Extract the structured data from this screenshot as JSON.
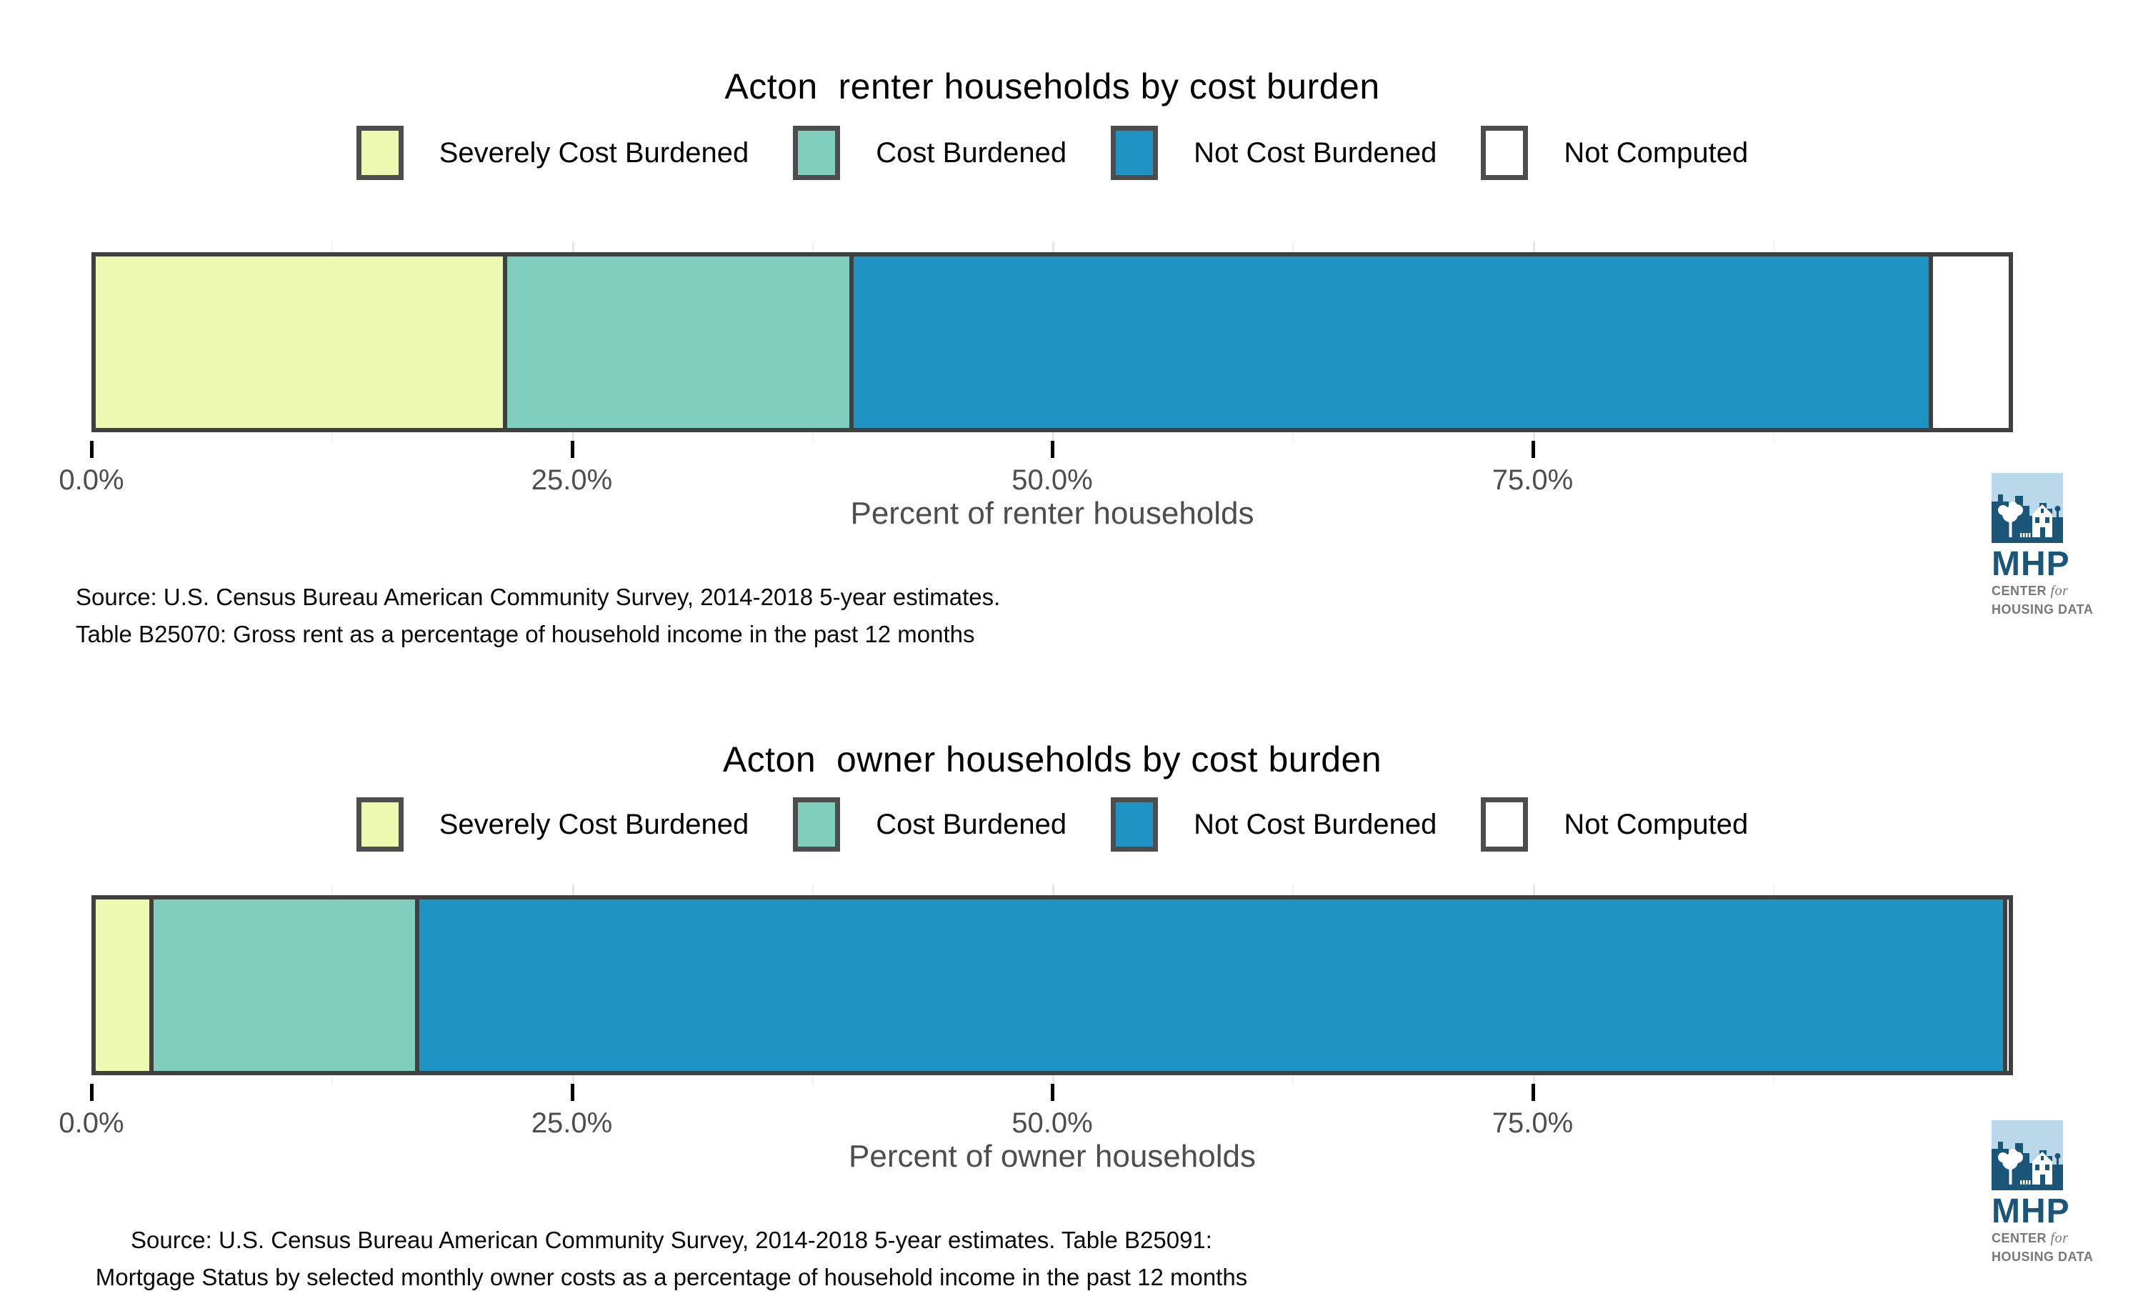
{
  "colors": {
    "severely_cost_burdened": "#edf8b1",
    "cost_burdened": "#7fcdbb",
    "not_cost_burdened": "#1e93c4",
    "not_computed": "#ffffff",
    "segment_border": "#404040",
    "axis_text": "#4d4d4d",
    "grid_major": "#e7e7e7",
    "grid_minor": "#f3f3f3",
    "logo_dark_blue": "#1b5578",
    "logo_light_blue": "#b9d8ea",
    "logo_gray": "#77787b"
  },
  "logo": {
    "acronym": "MHP",
    "center_label": "CENTER",
    "for_label": "for",
    "housing_label": "HOUSING DATA"
  },
  "chart_data": [
    {
      "type": "bar",
      "stacked": true,
      "orientation": "horizontal",
      "title": "Acton  renter households by cost burden",
      "xlabel": "Percent of renter households",
      "xlim": [
        0,
        100
      ],
      "x_ticks": {
        "values": [
          0,
          25,
          50,
          75
        ],
        "labels": [
          "0.0%",
          "25.0%",
          "50.0%",
          "75.0%"
        ]
      },
      "minor_grid_values": [
        12.5,
        37.5,
        62.5,
        87.5
      ],
      "legend_position": "top",
      "categories": [
        "Severely Cost Burdened",
        "Cost Burdened",
        "Not Cost Burdened",
        "Not Computed"
      ],
      "values": [
        21.3,
        18.1,
        56.4,
        4.2
      ],
      "segments": [
        {
          "label": "Severely Cost Burdened",
          "value": 21.3,
          "color": "#edf8b1"
        },
        {
          "label": "Cost Burdened",
          "value": 18.1,
          "color": "#7fcdbb"
        },
        {
          "label": "Not Cost Burdened",
          "value": 56.4,
          "color": "#1e93c4"
        },
        {
          "label": "Not Computed",
          "value": 4.2,
          "color": "#ffffff"
        }
      ],
      "source_lines": [
        "Source: U.S. Census Bureau American Community Survey, 2014-2018 5-year estimates.",
        "Table B25070: Gross rent as a percentage of household income in the past 12 months"
      ]
    },
    {
      "type": "bar",
      "stacked": true,
      "orientation": "horizontal",
      "title": "Acton  owner households by cost burden",
      "xlabel": "Percent of owner households",
      "xlim": [
        0,
        100
      ],
      "x_ticks": {
        "values": [
          0,
          25,
          50,
          75
        ],
        "labels": [
          "0.0%",
          "25.0%",
          "50.0%",
          "75.0%"
        ]
      },
      "minor_grid_values": [
        12.5,
        37.5,
        62.5,
        87.5
      ],
      "legend_position": "top",
      "categories": [
        "Severely Cost Burdened",
        "Cost Burdened",
        "Not Cost Burdened",
        "Not Computed"
      ],
      "values": [
        2.8,
        13.9,
        83.0,
        0.3
      ],
      "segments": [
        {
          "label": "Severely Cost Burdened",
          "value": 2.8,
          "color": "#edf8b1"
        },
        {
          "label": "Cost Burdened",
          "value": 13.9,
          "color": "#7fcdbb"
        },
        {
          "label": "Not Cost Burdened",
          "value": 83.0,
          "color": "#1e93c4"
        },
        {
          "label": "Not Computed",
          "value": 0.3,
          "color": "#ffffff"
        }
      ],
      "source_lines": [
        "Source: U.S. Census Bureau American Community Survey, 2014-2018 5-year estimates. Table B25091:",
        "Mortgage Status by selected monthly owner costs as a percentage of household income in the past 12 months"
      ]
    }
  ]
}
